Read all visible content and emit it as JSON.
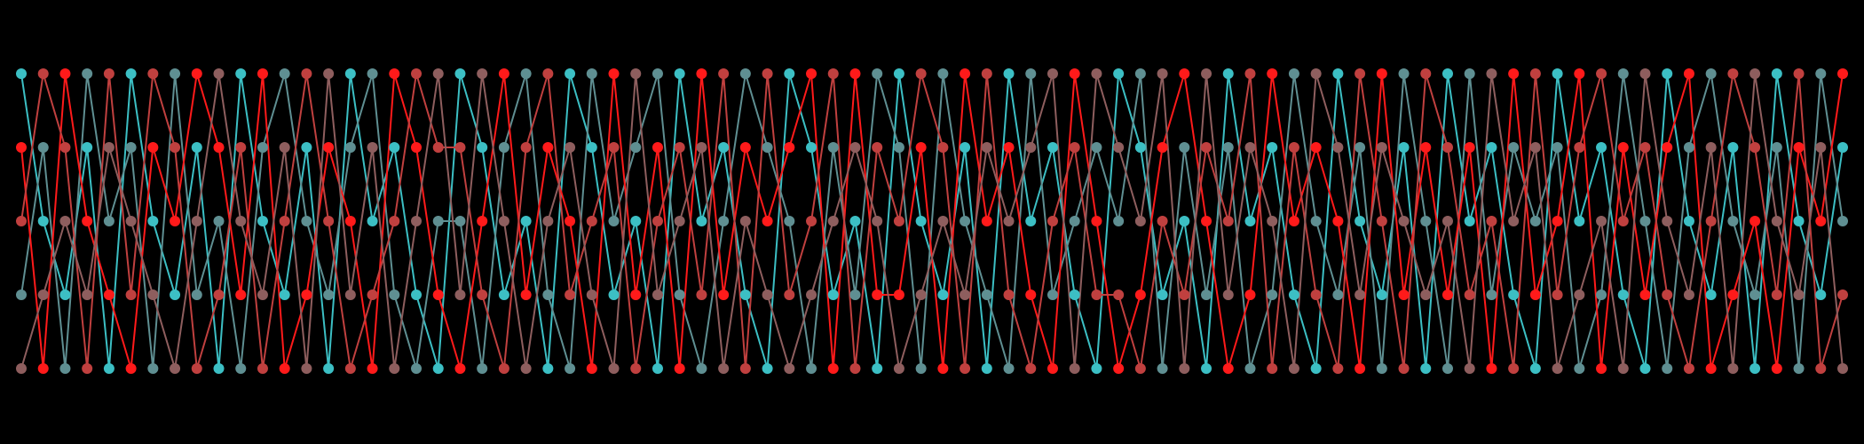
{
  "threads": [
    {
      "color": "#3cbfc4"
    },
    {
      "color": "#5f8f92"
    },
    {
      "color": "#ff1a1a"
    },
    {
      "color": "#c0403f"
    },
    {
      "color": "#8e5e5e"
    }
  ],
  "columns": [
    [
      0,
      3,
      1,
      2,
      4
    ],
    [
      2,
      1,
      4,
      0,
      3
    ],
    [
      3,
      4,
      0,
      1,
      2
    ],
    [
      1,
      0,
      2,
      4,
      3
    ],
    [
      4,
      2,
      3,
      0,
      1
    ],
    [
      0,
      1,
      4,
      3,
      2
    ],
    [
      2,
      4,
      1,
      0,
      3
    ],
    [
      3,
      0,
      2,
      1,
      4
    ],
    [
      1,
      3,
      0,
      4,
      2
    ],
    [
      4,
      2,
      1,
      3,
      0
    ],
    [
      0,
      4,
      3,
      1,
      2
    ],
    [
      2,
      1,
      0,
      4,
      3
    ],
    [
      3,
      0,
      4,
      2,
      1
    ],
    [
      1,
      2,
      3,
      0,
      4
    ],
    [
      4,
      3,
      1,
      2,
      0
    ],
    [
      0,
      1,
      2,
      4,
      3
    ],
    [
      2,
      0,
      4,
      3,
      1
    ],
    [
      1,
      3,
      0,
      2,
      4
    ],
    [
      3,
      4,
      1,
      0,
      2
    ],
    [
      4,
      2,
      3,
      1,
      0
    ],
    [
      0,
      2,
      4,
      1,
      3
    ],
    [
      1,
      4,
      2,
      3,
      0
    ],
    [
      3,
      1,
      0,
      4,
      2
    ],
    [
      2,
      0,
      3,
      1,
      4
    ],
    [
      4,
      3,
      1,
      0,
      2
    ],
    [
      0,
      4,
      2,
      3,
      1
    ],
    [
      1,
      0,
      4,
      2,
      3
    ],
    [
      3,
      2,
      0,
      1,
      4
    ],
    [
      2,
      1,
      3,
      4,
      0
    ],
    [
      4,
      0,
      1,
      2,
      3
    ],
    [
      0,
      3,
      4,
      1,
      2
    ],
    [
      2,
      4,
      0,
      3,
      1
    ],
    [
      1,
      2,
      3,
      0,
      4
    ],
    [
      3,
      0,
      1,
      4,
      2
    ],
    [
      4,
      1,
      2,
      0,
      3
    ],
    [
      0,
      2,
      1,
      3,
      4
    ],
    [
      1,
      4,
      0,
      2,
      3
    ],
    [
      3,
      1,
      4,
      0,
      2
    ],
    [
      2,
      3,
      0,
      4,
      1
    ],
    [
      4,
      0,
      3,
      1,
      2
    ],
    [
      0,
      1,
      3,
      2,
      4
    ],
    [
      2,
      4,
      1,
      0,
      3
    ],
    [
      3,
      0,
      4,
      1,
      2
    ],
    [
      1,
      2,
      0,
      4,
      3
    ],
    [
      4,
      3,
      2,
      0,
      1
    ],
    [
      0,
      4,
      1,
      3,
      2
    ],
    [
      2,
      0,
      3,
      4,
      1
    ],
    [
      1,
      3,
      4,
      2,
      0
    ],
    [
      3,
      2,
      0,
      1,
      4
    ],
    [
      4,
      1,
      2,
      3,
      0
    ],
    [
      0,
      2,
      4,
      3,
      1
    ],
    [
      1,
      0,
      3,
      4,
      2
    ],
    [
      3,
      4,
      1,
      2,
      0
    ],
    [
      2,
      1,
      0,
      3,
      4
    ],
    [
      4,
      3,
      2,
      1,
      0
    ],
    [
      0,
      1,
      4,
      2,
      3
    ],
    [
      2,
      4,
      3,
      0,
      1
    ],
    [
      1,
      3,
      0,
      4,
      2
    ],
    [
      3,
      0,
      2,
      1,
      4
    ],
    [
      4,
      2,
      1,
      3,
      0
    ],
    [
      0,
      3,
      2,
      4,
      1
    ],
    [
      2,
      1,
      4,
      0,
      3
    ],
    [
      3,
      4,
      0,
      2,
      1
    ],
    [
      1,
      0,
      3,
      4,
      2
    ],
    [
      4,
      2,
      1,
      0,
      3
    ],
    [
      0,
      4,
      3,
      1,
      2
    ],
    [
      2,
      0,
      1,
      3,
      4
    ],
    [
      1,
      3,
      4,
      2,
      0
    ],
    [
      3,
      1,
      0,
      4,
      2
    ],
    [
      4,
      2,
      3,
      0,
      1
    ],
    [
      0,
      1,
      2,
      3,
      4
    ],
    [
      2,
      4,
      0,
      1,
      3
    ],
    [
      1,
      3,
      4,
      0,
      2
    ],
    [
      3,
      0,
      1,
      2,
      4
    ],
    [
      4,
      2,
      3,
      1,
      0
    ],
    [
      0,
      4,
      1,
      3,
      2
    ],
    [
      2,
      1,
      0,
      4,
      3
    ],
    [
      3,
      0,
      4,
      2,
      1
    ],
    [
      1,
      2,
      3,
      0,
      4
    ],
    [
      4,
      3,
      2,
      1,
      0
    ],
    [
      0,
      1,
      4,
      3,
      2
    ],
    [
      2,
      4,
      1,
      0,
      3
    ],
    [
      3,
      0,
      2,
      4,
      1
    ],
    [
      1,
      2,
      0,
      3,
      4
    ]
  ]
}
